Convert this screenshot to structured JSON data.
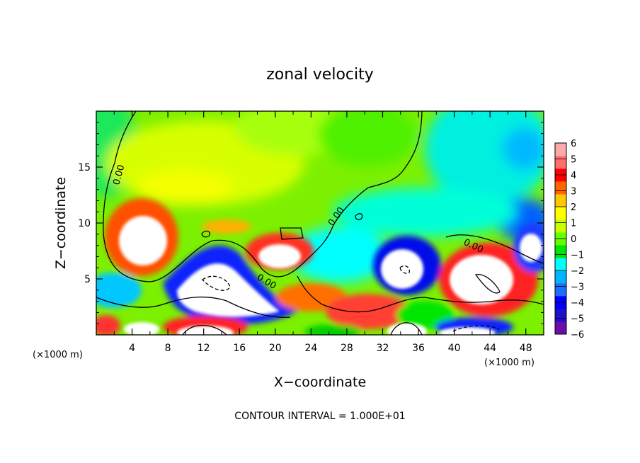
{
  "chart_data": {
    "type": "heatmap",
    "title": "zonal velocity",
    "xlabel": "X−coordinate",
    "ylabel": "Z−coordinate",
    "x_unit": "(×1000 m)",
    "z_unit": "(×1000 m)",
    "xlim": [
      0,
      50
    ],
    "ylim": [
      0,
      20
    ],
    "x_ticks": [
      "4",
      "8",
      "12",
      "16",
      "20",
      "24",
      "28",
      "32",
      "36",
      "40",
      "44",
      "48"
    ],
    "y_ticks": [
      "5",
      "10",
      "15"
    ],
    "colorbar": {
      "range": [
        -6,
        6
      ],
      "ticks": [
        "6",
        "5",
        "4",
        "3",
        "2",
        "1",
        "0",
        "−1",
        "−2",
        "−3",
        "−4",
        "−5",
        "−6"
      ],
      "colors": [
        "#6a0dad",
        "#1e10c8",
        "#0000ff",
        "#1e6eff",
        "#00b4ff",
        "#00ffff",
        "#00e600",
        "#64ff00",
        "#c8ff00",
        "#ffff00",
        "#ffc800",
        "#ff6400",
        "#ff0000",
        "#ff6e6e",
        "#ffaaaa"
      ]
    },
    "contour_labels": [
      "0.00",
      "0.00",
      "0.00",
      "0.00"
    ],
    "footer": "CONTOUR INTERVAL = 1.000E+01",
    "legend_position": "right"
  }
}
